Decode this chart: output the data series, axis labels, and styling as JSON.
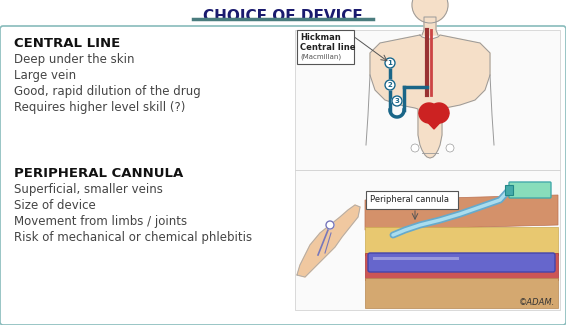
{
  "title": "CHOICE OF DEVICE",
  "title_color": "#1a1a6e",
  "title_underline_color": "#4a7c7e",
  "background_color": "#ffffff",
  "border_color": "#88bbbb",
  "section1_header": "CENTRAL LINE",
  "section1_bullets": [
    "Deep under the skin",
    "Large vein",
    "Good, rapid dilution of the drug",
    "Requires higher level skill (?)"
  ],
  "section2_header": "PERIPHERAL CANNULA",
  "section2_bullets": [
    "Superficial, smaller veins",
    "Size of device",
    "Movement from limbs / joints",
    "Risk of mechanical or chemical phlebitis"
  ],
  "central_line_label_line1": "Hickman",
  "central_line_label_line2": "Central line",
  "central_line_label_line3": "(Macmillan)",
  "peripheral_label": "Peripheral cannula",
  "adam_credit": "©ADAM.",
  "title_fontsize": 11,
  "header_fontsize": 9.5,
  "bullet_fontsize": 8.5,
  "label_fontsize": 6,
  "small_label_fontsize": 5,
  "adam_fontsize": 6,
  "header_color": "#111111",
  "bullet_color": "#444444",
  "skin_color": "#f0c8a0",
  "heart_color": "#cc2222",
  "catheter_color": "#1a6688",
  "vein_dark_color": "#8888bb",
  "body_outline_color": "#999999",
  "body_fill_color": "#f5dfc8"
}
